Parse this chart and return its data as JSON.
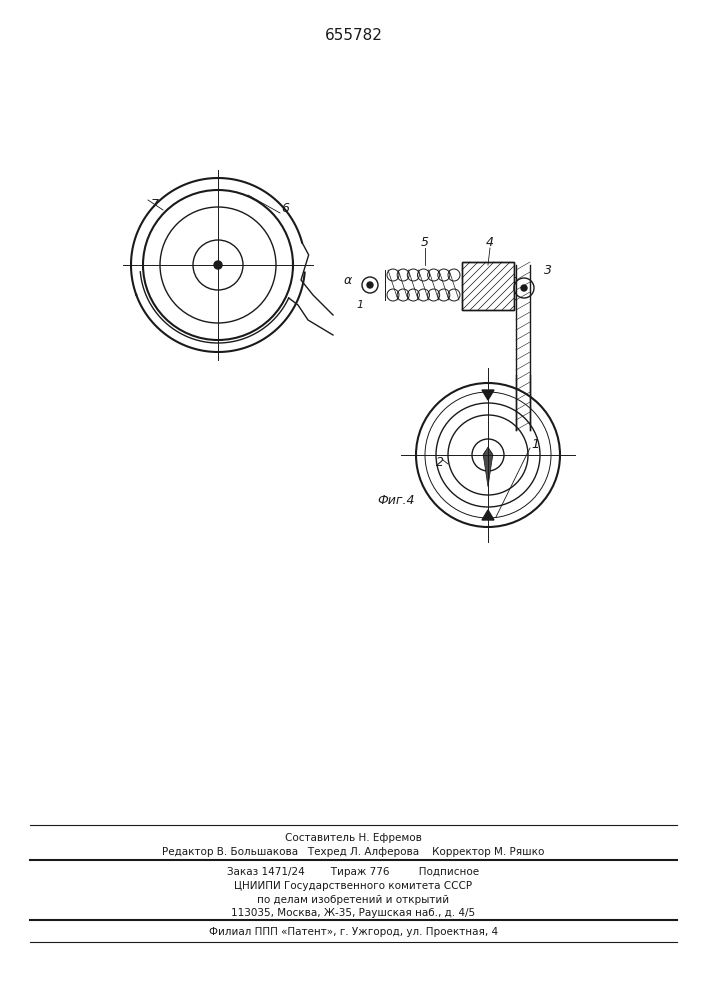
{
  "title": "655782",
  "fig_label": "Фиг.4",
  "bg_color": "#ffffff",
  "line_color": "#1a1a1a",
  "footer_lines": [
    "Составитель Н. Ефремов",
    "Редактор В. Большакова   Техред Л. Алферова    Корректор М. Ряшко",
    "Заказ 1471/24        Тираж 776         Подписное",
    "ЦНИИПИ Государственного комитета СССР",
    "по делам изобретений и открытий",
    "113035, Москва, Ж-35, Раушская наб., д. 4/5",
    "Филиал ППП «Патент», г. Ужгород, ул. Проектная, 4"
  ]
}
